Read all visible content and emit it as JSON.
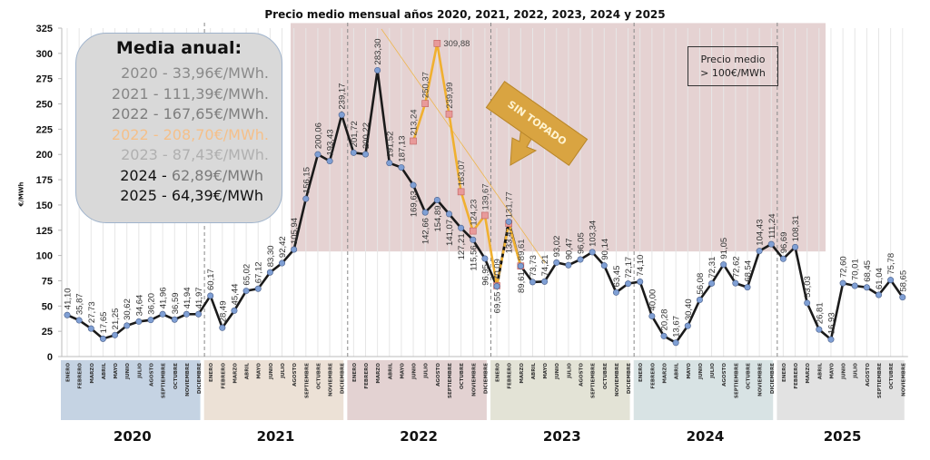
{
  "chart_data": {
    "type": "line",
    "title": "Precio medio mensual años 2020, 2021, 2022, 2023, 2024 y 2025",
    "ylabel": "€/MWh",
    "ylim": [
      0,
      325
    ],
    "yticks": [
      0,
      25,
      50,
      75,
      100,
      125,
      150,
      175,
      200,
      225,
      250,
      275,
      300,
      325
    ],
    "grid": "vertical month lines",
    "months": [
      "ENERO",
      "FEBRERO",
      "MARZO",
      "ABRIL",
      "MAYO",
      "JUNIO",
      "JULIO",
      "AGOSTO",
      "SEPTIEMBRE",
      "OCTUBRE",
      "NOVIEMBRE",
      "DICIEMBRE"
    ],
    "years": [
      {
        "label": "2020",
        "months": 12,
        "color": "#c5d3e3"
      },
      {
        "label": "2021",
        "months": 12,
        "color": "#ece1d6"
      },
      {
        "label": "2022",
        "months": 12,
        "color": "#e3d2d2"
      },
      {
        "label": "2023",
        "months": 12,
        "color": "#e3e3d6"
      },
      {
        "label": "2024",
        "months": 12,
        "color": "#d8e3e4"
      },
      {
        "label": "2025",
        "months": 11,
        "color": "#e2e2e2"
      }
    ],
    "series": [
      {
        "color": "#1a1a1a",
        "marker_color": "#7f9fd4",
        "values": [
          41.1,
          35.87,
          27.73,
          17.65,
          21.25,
          30.62,
          34.64,
          36.2,
          41.96,
          36.59,
          41.94,
          41.97,
          60.17,
          28.49,
          45.44,
          65.02,
          67.12,
          83.3,
          92.42,
          105.94,
          156.15,
          200.06,
          193.43,
          239.17,
          201.72,
          200.22,
          283.3,
          191.52,
          187.13,
          169.63,
          142.66,
          154.89,
          141.07,
          127.21,
          115.56,
          96.95,
          69.55,
          133.47,
          89.61,
          73.73,
          74.21,
          93.02,
          90.47,
          96.05,
          103.34,
          90.14,
          63.45,
          72.17,
          74.1,
          40.0,
          20.28,
          13.67,
          30.4,
          56.08,
          72.31,
          91.05,
          72.62,
          68.54,
          104.43,
          111.24,
          96.69,
          108.31,
          53.03,
          26.81,
          16.93,
          72.6,
          70.01,
          68.45,
          61.04,
          75.78,
          58.65
        ]
      },
      {
        "name": "SIN TOPADO",
        "color": "#f0b030",
        "marker_color": "#e89a9a",
        "start_index": 29,
        "values": [
          213.24,
          250.37,
          309.88,
          239.99,
          163.07,
          124.23,
          139.67,
          70.09,
          131.77,
          89.61
        ]
      }
    ],
    "highlight_band": {
      "label": "Precio medio > 100€/MWh",
      "from_value": 104,
      "to_value": 330,
      "from": "2021 SEPTIEMBRE",
      "to": "2024 DICIEMBRE",
      "color": "#e0caca"
    },
    "annotation": "SIN TOPADO"
  },
  "legend": {
    "title": "Media anual:",
    "rows": [
      {
        "year": "2020 -",
        "value": "33,96€/MWh.",
        "color": "#8a8a8a",
        "vcolor": "#8a8a8a"
      },
      {
        "year": "2021 -",
        "value": "111,39€/MWh.",
        "color": "#868686",
        "vcolor": "#868686"
      },
      {
        "year": "2022 -",
        "value": "167,65€/MWh.",
        "color": "#7e7e7e",
        "vcolor": "#7e7e7e"
      },
      {
        "year": "2022 -",
        "value": "208,70€/MWh.",
        "color": "#f5c08a",
        "vcolor": "#f5c08a"
      },
      {
        "year": "2023 -",
        "value": "87,43€/MWh.",
        "color": "#b0b0b0",
        "vcolor": "#b0b0b0"
      },
      {
        "year": "2024 -",
        "value": "62,89€/MWh",
        "color": "#111111",
        "vcolor": "#7a7a7a"
      },
      {
        "year": "2025 -",
        "value": "64,39€/MWh",
        "color": "#111111",
        "vcolor": "#111111"
      }
    ]
  },
  "note": {
    "line1": "Precio medio",
    "line2": "> 100€/MWh"
  }
}
